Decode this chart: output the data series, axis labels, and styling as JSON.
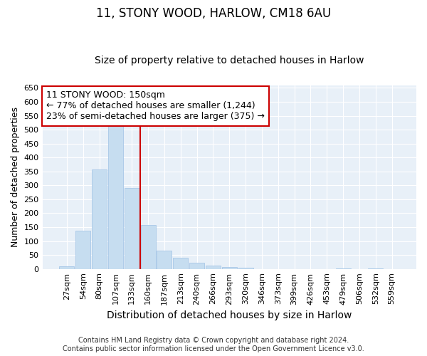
{
  "title1": "11, STONY WOOD, HARLOW, CM18 6AU",
  "title2": "Size of property relative to detached houses in Harlow",
  "xlabel": "Distribution of detached houses by size in Harlow",
  "ylabel": "Number of detached properties",
  "categories": [
    "27sqm",
    "54sqm",
    "80sqm",
    "107sqm",
    "133sqm",
    "160sqm",
    "187sqm",
    "213sqm",
    "240sqm",
    "266sqm",
    "293sqm",
    "320sqm",
    "346sqm",
    "373sqm",
    "399sqm",
    "426sqm",
    "453sqm",
    "479sqm",
    "506sqm",
    "532sqm",
    "559sqm"
  ],
  "values": [
    10,
    136,
    358,
    535,
    290,
    157,
    65,
    40,
    21,
    13,
    8,
    5,
    0,
    0,
    0,
    0,
    0,
    3,
    0,
    2,
    0
  ],
  "bar_color": "#c6ddf0",
  "bar_edge_color": "#a8c8e8",
  "annotation_line1": "11 STONY WOOD: 150sqm",
  "annotation_line2": "← 77% of detached houses are smaller (1,244)",
  "annotation_line3": "23% of semi-detached houses are larger (375) →",
  "annotation_box_facecolor": "#ffffff",
  "annotation_box_edgecolor": "#cc0000",
  "vline_color": "#cc0000",
  "vline_x": 4.5,
  "ylim": [
    0,
    660
  ],
  "yticks": [
    0,
    50,
    100,
    150,
    200,
    250,
    300,
    350,
    400,
    450,
    500,
    550,
    600,
    650
  ],
  "footer1": "Contains HM Land Registry data © Crown copyright and database right 2024.",
  "footer2": "Contains public sector information licensed under the Open Government Licence v3.0.",
  "bg_color": "#ffffff",
  "plot_bg_color": "#e8f0f8",
  "title1_fontsize": 12,
  "title2_fontsize": 10,
  "xlabel_fontsize": 10,
  "ylabel_fontsize": 9,
  "tick_fontsize": 8,
  "annotation_fontsize": 9,
  "footer_fontsize": 7
}
